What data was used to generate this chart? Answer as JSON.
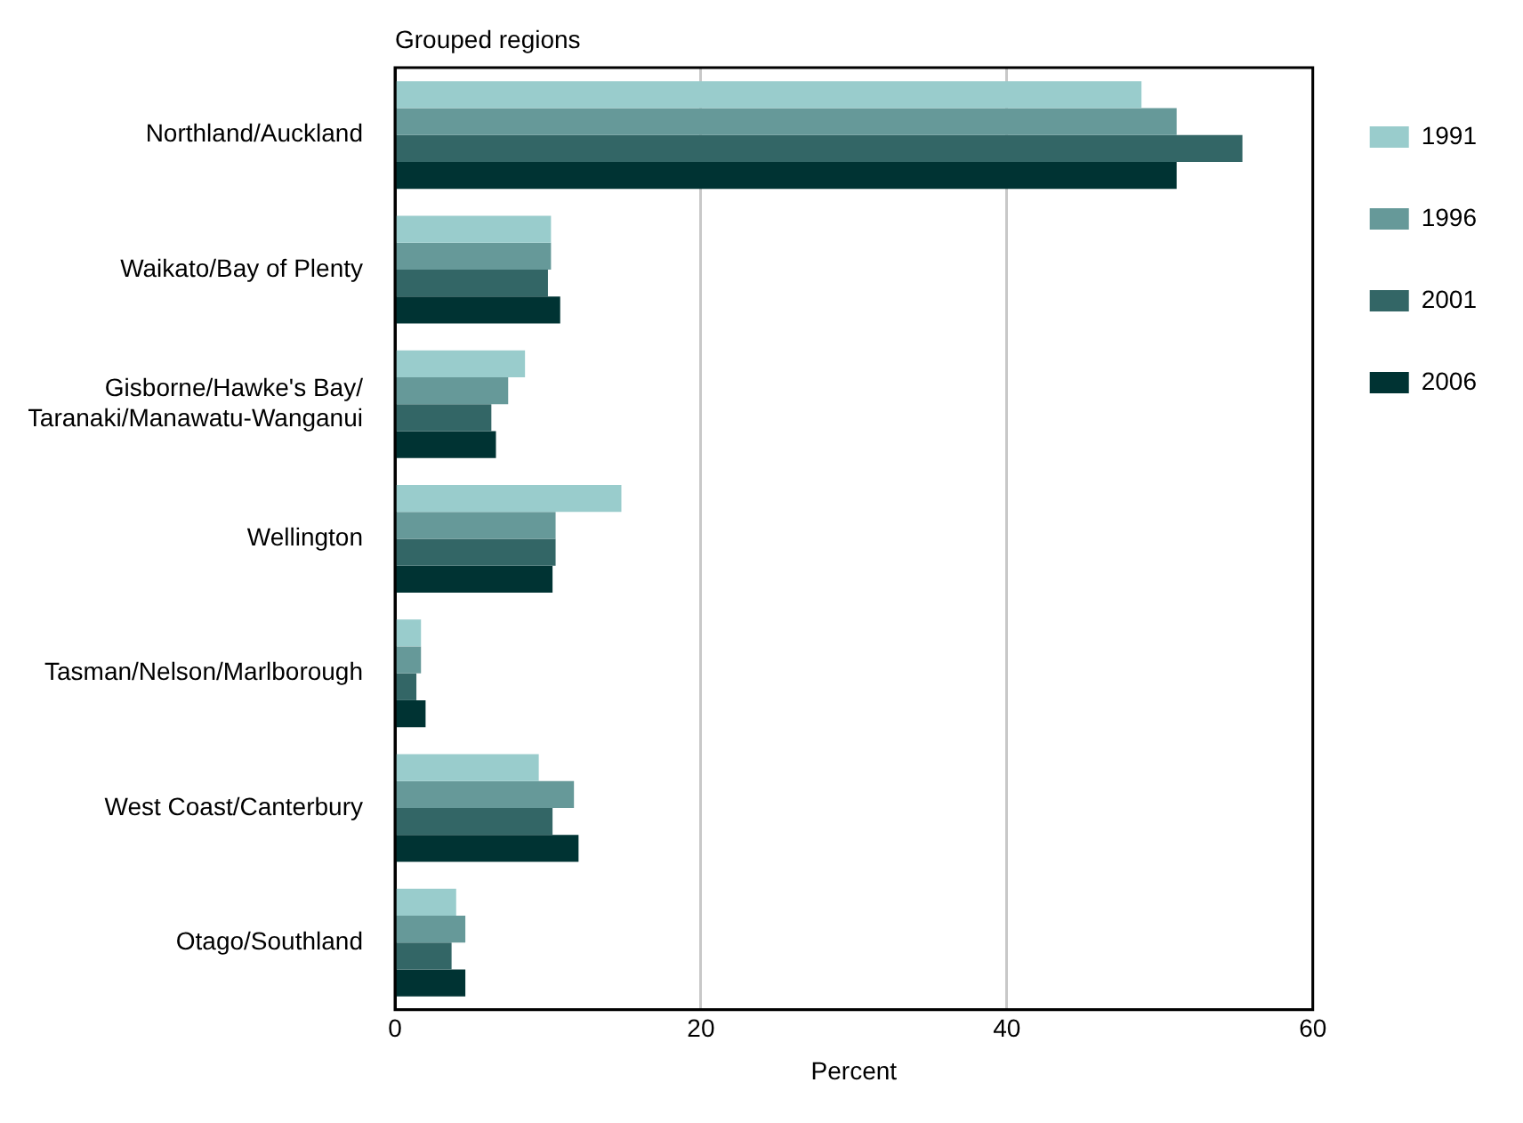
{
  "chart_data": {
    "type": "bar",
    "orientation": "horizontal",
    "title": "Grouped regions",
    "xlabel": "Percent",
    "categories": [
      "Northland/Auckland",
      "Waikato/Bay of Plenty",
      "Gisborne/Hawke's Bay/\nTaranaki/Manawatu-Wanganui",
      "Wellington",
      "Tasman/Nelson/Marlborough",
      "West Coast/Canterbury",
      "Otago/Southland"
    ],
    "series": [
      {
        "name": "1991",
        "color": "#99cccc",
        "values": [
          48.8,
          10.2,
          8.5,
          14.8,
          1.7,
          9.4,
          4.0
        ]
      },
      {
        "name": "1996",
        "color": "#669999",
        "values": [
          51.1,
          10.2,
          7.4,
          10.5,
          1.7,
          11.7,
          4.6
        ]
      },
      {
        "name": "2001",
        "color": "#336666",
        "values": [
          55.4,
          10.0,
          6.3,
          10.5,
          1.4,
          10.3,
          3.7
        ]
      },
      {
        "name": "2006",
        "color": "#003333",
        "values": [
          51.1,
          10.8,
          6.6,
          10.3,
          2.0,
          12.0,
          4.6
        ]
      }
    ],
    "xlim": [
      0,
      60
    ],
    "xticks": [
      0,
      20,
      40,
      60
    ],
    "grid": "x",
    "legend": "right"
  }
}
